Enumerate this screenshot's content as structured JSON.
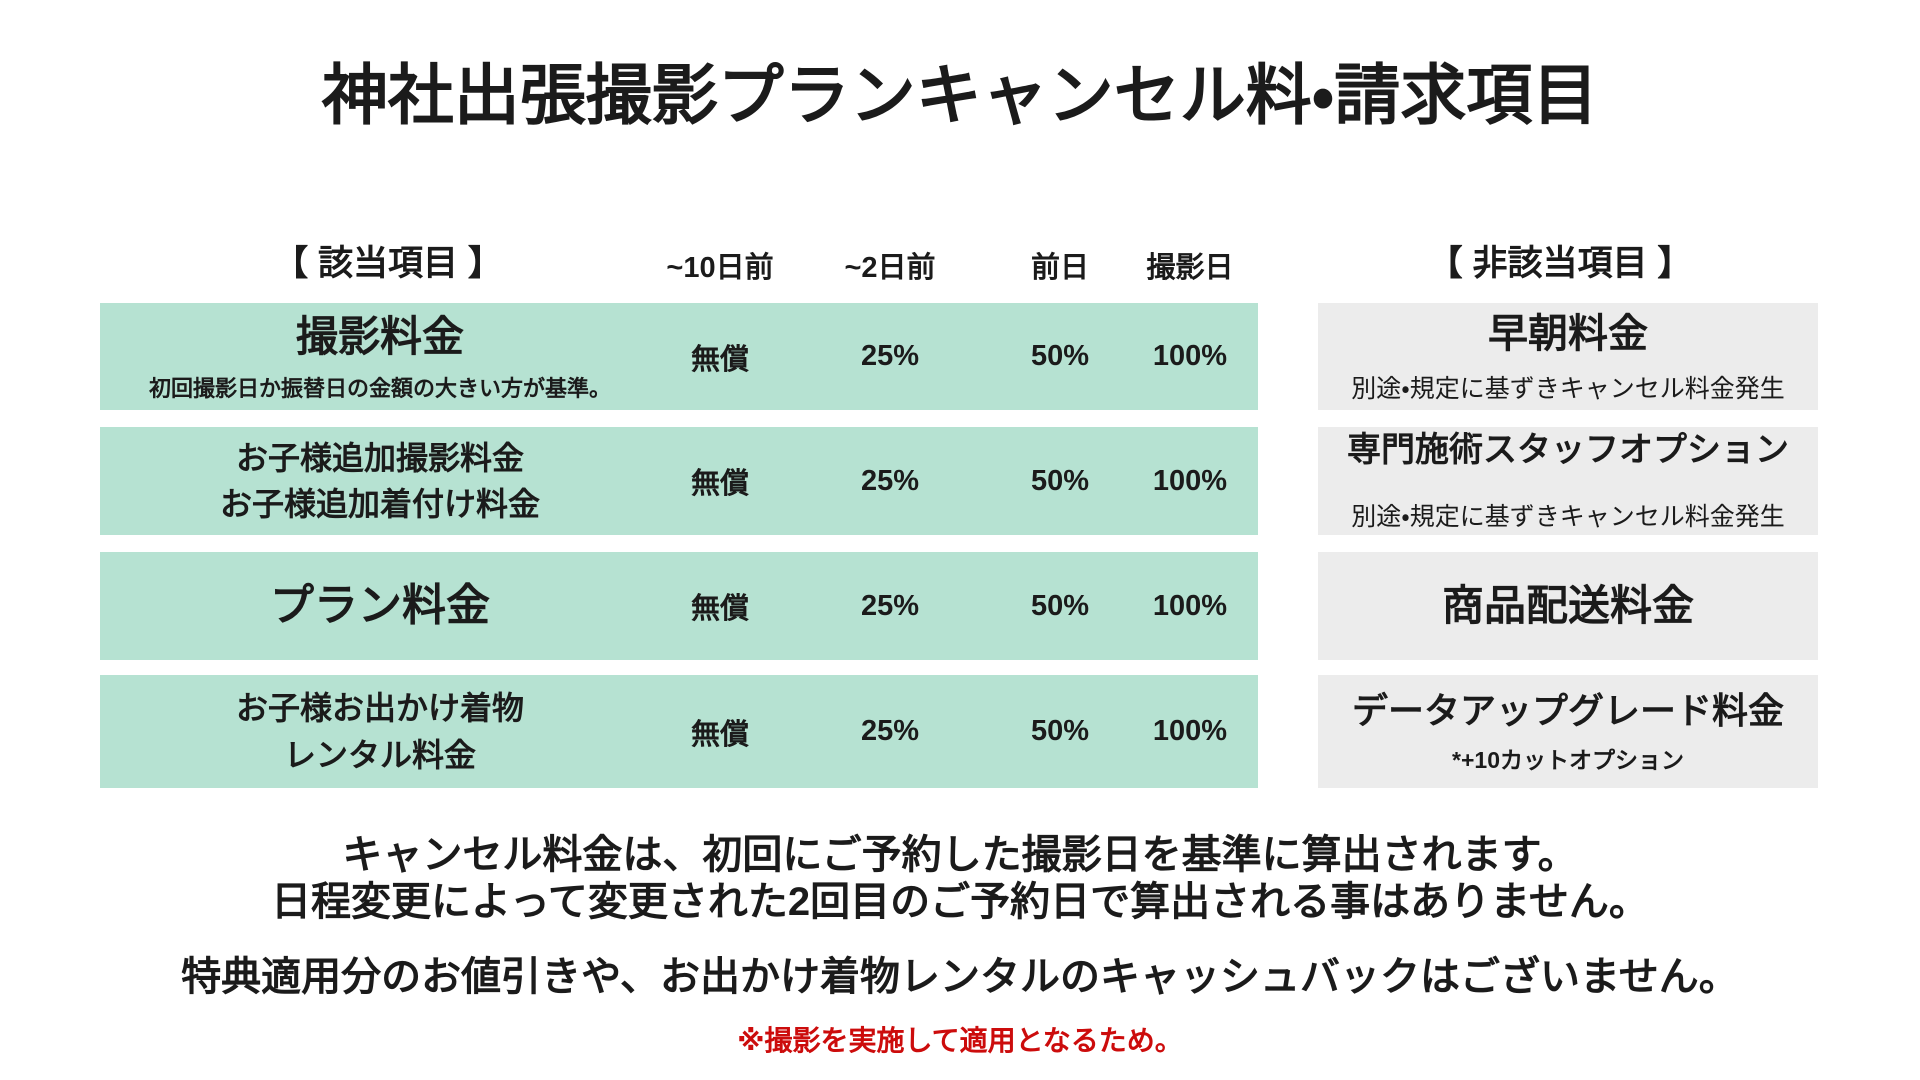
{
  "title": "神社出張撮影プランキャンセル料・請求項目",
  "table": {
    "applicable_header": "【 該当項目 】",
    "not_applicable_header": "【 非該当項目 】",
    "columns": [
      "~10日前",
      "~2日前",
      "前日",
      "撮影日"
    ],
    "rows": [
      {
        "lines": [
          "撮影料金"
        ],
        "sub": "初回撮影日か振替日の金額の大きい方が基準。",
        "values": [
          "無償",
          "25%",
          "50%",
          "100%"
        ],
        "right": {
          "lines": [
            "早朝料金"
          ],
          "sub": "別途・規定に基ずきキャンセル料金発生"
        }
      },
      {
        "lines": [
          "お子様追加撮影料金",
          "お子様追加着付け料金"
        ],
        "values": [
          "無償",
          "25%",
          "50%",
          "100%"
        ],
        "right": {
          "lines": [
            "専門施術スタッフオプション"
          ],
          "sub": "別途・規定に基ずきキャンセル料金発生"
        }
      },
      {
        "lines": [
          "プラン料金"
        ],
        "values": [
          "無償",
          "25%",
          "50%",
          "100%"
        ],
        "right": {
          "lines": [
            "商品配送料金"
          ]
        }
      },
      {
        "lines": [
          "お子様お出かけ着物",
          "レンタル料金"
        ],
        "values": [
          "無償",
          "25%",
          "50%",
          "100%"
        ],
        "right": {
          "lines": [
            "データアップグレード料金"
          ],
          "sub": "*+10カットオプション"
        }
      }
    ]
  },
  "notes": {
    "line1": "キャンセル料金は、初回にご予約した撮影日を基準に算出されます。",
    "line2": "日程変更によって変更された2回目のご予約日で算出される事はありません。",
    "line3": "特典適用分のお値引きや、お出かけ着物レンタルのキャッシュバックはございません。",
    "red_note": "※撮影を実施して適用となるため。"
  },
  "colors": {
    "row_green": "#b6e2d2",
    "row_gray": "#ececec",
    "note_red": "#cc0c0c",
    "text": "#1b1b1b"
  }
}
